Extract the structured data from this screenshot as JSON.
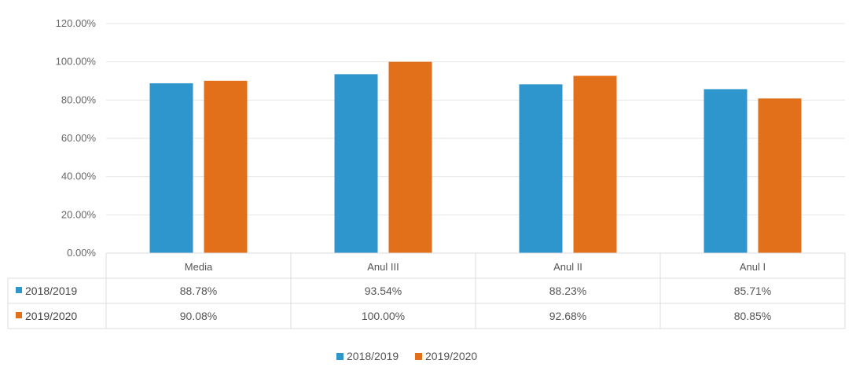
{
  "colors": {
    "series_2018_2019": "#2E95CD",
    "series_2019_2020": "#E26F1A"
  },
  "chart_data": {
    "type": "bar",
    "title": "",
    "categories": [
      "Media",
      "Anul III",
      "Anul II",
      "Anul I"
    ],
    "series": [
      {
        "name": "2018/2019",
        "values": [
          88.78,
          93.54,
          88.23,
          85.71
        ],
        "labels": [
          "88.78%",
          "93.54%",
          "88.23%",
          "85.71%"
        ]
      },
      {
        "name": "2019/2020",
        "values": [
          90.08,
          100.0,
          92.68,
          80.85
        ],
        "labels": [
          "90.08%",
          "100.00%",
          "92.68%",
          "80.85%"
        ]
      }
    ],
    "ylim": [
      0,
      120
    ],
    "yticks": [
      "0.00%",
      "20.00%",
      "40.00%",
      "60.00%",
      "80.00%",
      "100.00%",
      "120.00%"
    ],
    "grid": true,
    "data_table": true,
    "legend": "bottom"
  }
}
